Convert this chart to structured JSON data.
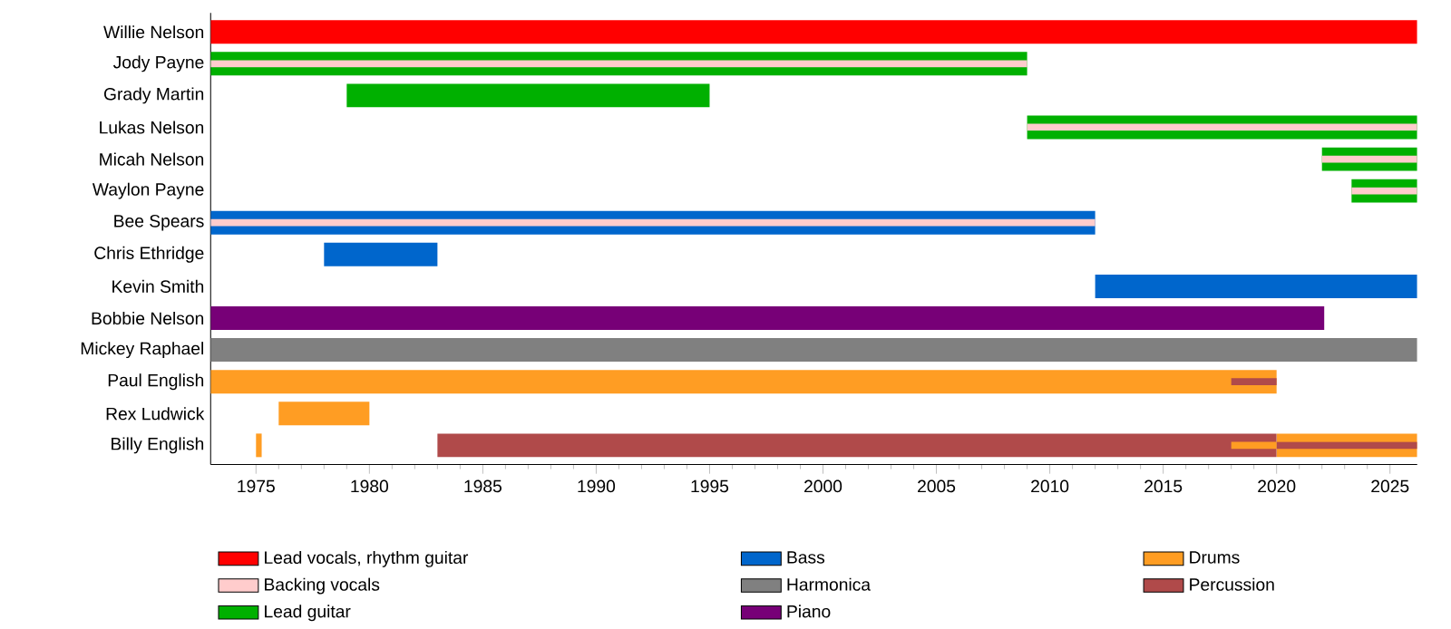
{
  "chart_data": {
    "type": "bar",
    "orientation": "horizontal",
    "categories": [
      "Willie Nelson",
      "Jody Payne",
      "Grady Martin",
      "Lukas Nelson",
      "Micah Nelson",
      "Waylon Payne",
      "Bee Spears",
      "Chris Ethridge",
      "Kevin Smith",
      "Bobbie Nelson",
      "Mickey Raphael",
      "Paul English",
      "Rex Ludwick",
      "Billy English"
    ],
    "series": [
      {
        "name": "Lead vocals, rhythm guitar",
        "color": "#ff0000",
        "base": [
          1973,
          null,
          null,
          null,
          null,
          null,
          null,
          null,
          null,
          null,
          null,
          null,
          null,
          null
        ],
        "values": [
          53.2,
          null,
          null,
          null,
          null,
          null,
          null,
          null,
          null,
          null,
          null,
          null,
          null,
          null
        ]
      },
      {
        "name": "Backing vocals",
        "color": "#ffcccc",
        "base": [
          null,
          1973,
          null,
          2009,
          2022,
          2023.3,
          1973,
          null,
          null,
          null,
          null,
          null,
          null,
          null
        ],
        "values": [
          null,
          36,
          null,
          17.2,
          4.2,
          2.9,
          39,
          null,
          null,
          null,
          null,
          null,
          null,
          null
        ]
      },
      {
        "name": "Lead guitar",
        "color": "#00b000",
        "base": [
          null,
          1973,
          1979,
          2009,
          2022,
          2023.3,
          null,
          null,
          null,
          null,
          null,
          null,
          null,
          null
        ],
        "values": [
          null,
          36,
          16,
          17.2,
          4.2,
          2.9,
          null,
          null,
          null,
          null,
          null,
          null,
          null,
          null
        ]
      },
      {
        "name": "Bass",
        "color": "#0066cc",
        "base": [
          null,
          null,
          null,
          null,
          null,
          null,
          1973,
          1978,
          2012,
          null,
          null,
          null,
          null,
          null
        ],
        "values": [
          null,
          null,
          null,
          null,
          null,
          null,
          39,
          5,
          14.2,
          null,
          null,
          null,
          null,
          null
        ]
      },
      {
        "name": "Harmonica",
        "color": "#808080",
        "base": [
          null,
          null,
          null,
          null,
          null,
          null,
          null,
          null,
          null,
          null,
          1973,
          null,
          null,
          null
        ],
        "values": [
          null,
          null,
          null,
          null,
          null,
          null,
          null,
          null,
          null,
          null,
          53.2,
          null,
          null,
          null
        ]
      },
      {
        "name": "Piano",
        "color": "#770077",
        "base": [
          null,
          null,
          null,
          null,
          null,
          null,
          null,
          null,
          null,
          1973,
          null,
          null,
          null,
          null
        ],
        "values": [
          null,
          null,
          null,
          null,
          null,
          null,
          null,
          null,
          null,
          49.1,
          null,
          null,
          null,
          null
        ]
      },
      {
        "name": "Drums",
        "color": "#ff9d23",
        "base": [
          null,
          null,
          null,
          null,
          null,
          null,
          null,
          null,
          null,
          null,
          null,
          1973,
          1976,
          1975
        ],
        "values": [
          null,
          null,
          null,
          null,
          null,
          null,
          null,
          null,
          null,
          null,
          null,
          47,
          4,
          0.25
        ]
      },
      {
        "name": "Percussion",
        "color": "#b04a4a",
        "base": [
          null,
          null,
          null,
          null,
          null,
          null,
          null,
          null,
          null,
          null,
          null,
          2018,
          null,
          1983
        ],
        "values": [
          null,
          null,
          null,
          null,
          null,
          null,
          null,
          null,
          null,
          null,
          null,
          2,
          null,
          37
        ]
      },
      {
        "color": "#ff9d23",
        "base": [
          null,
          null,
          null,
          null,
          null,
          null,
          null,
          null,
          null,
          null,
          null,
          null,
          null,
          2018
        ],
        "values": [
          null,
          null,
          null,
          null,
          null,
          null,
          null,
          null,
          null,
          null,
          null,
          null,
          null,
          2
        ]
      },
      {
        "color": "#b04a4a",
        "base": [
          null,
          null,
          null,
          null,
          null,
          null,
          null,
          null,
          null,
          null,
          null,
          null,
          null,
          2020
        ],
        "values": [
          null,
          null,
          null,
          null,
          null,
          null,
          null,
          null,
          null,
          null,
          null,
          null,
          null,
          6.2
        ]
      },
      {
        "color": "#ff9d23",
        "base": [
          null,
          null,
          null,
          null,
          null,
          null,
          null,
          null,
          null,
          null,
          null,
          null,
          null,
          2020
        ],
        "values": [
          null,
          null,
          null,
          null,
          null,
          null,
          null,
          null,
          null,
          null,
          null,
          null,
          null,
          6.2
        ]
      }
    ],
    "xlim": [
      1973,
      2026.2
    ],
    "xticks": [
      1975,
      1980,
      1985,
      1990,
      1995,
      2000,
      2005,
      2010,
      2015,
      2020,
      2025
    ],
    "legend": "bottom"
  }
}
